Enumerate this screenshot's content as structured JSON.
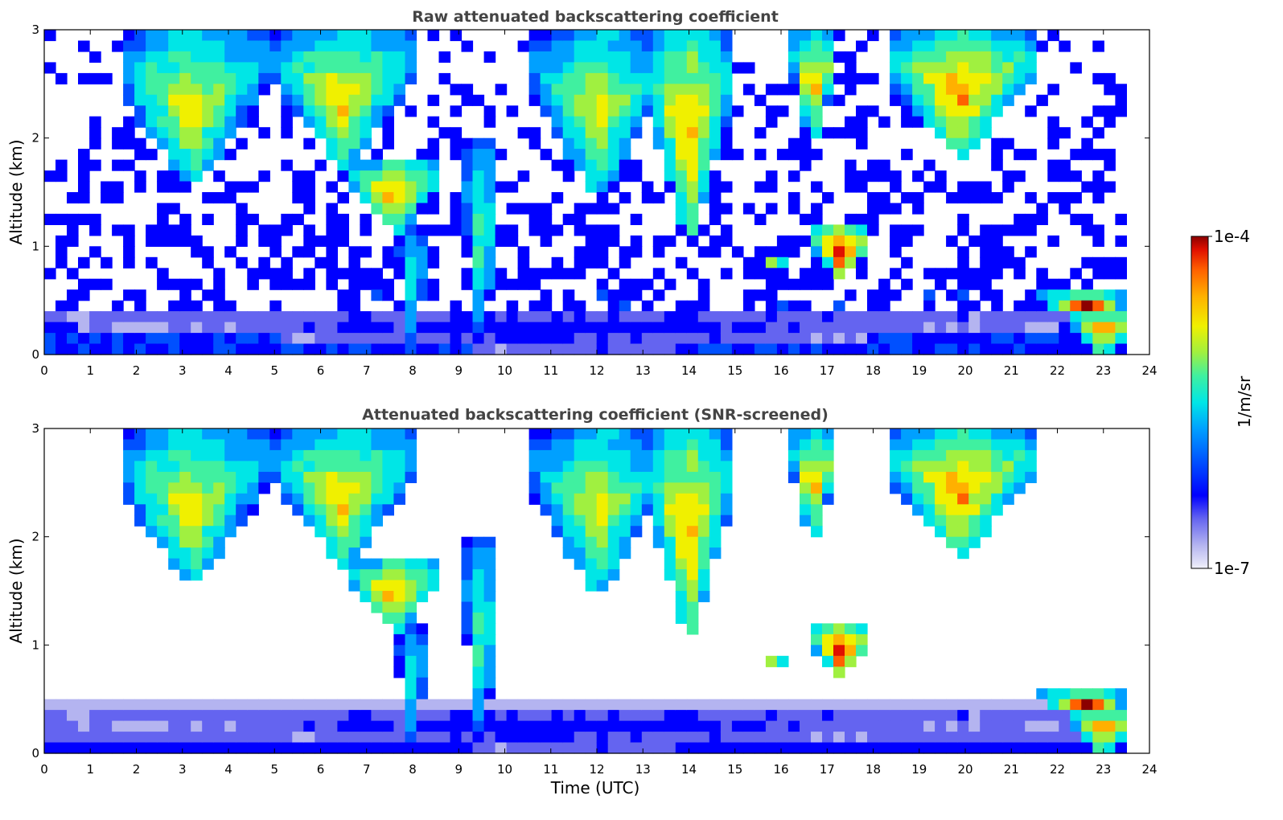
{
  "chart_data": [
    {
      "type": "heatmap",
      "title": "Raw attenuated backscattering coefficient",
      "xlabel": "",
      "ylabel": "Altitude (km)",
      "xlim": [
        0,
        24
      ],
      "ylim": [
        0,
        3
      ],
      "xticks": [
        "0",
        "1",
        "2",
        "3",
        "4",
        "5",
        "6",
        "7",
        "8",
        "9",
        "10",
        "11",
        "12",
        "13",
        "14",
        "15",
        "16",
        "17",
        "18",
        "19",
        "20",
        "21",
        "22",
        "23",
        "24"
      ],
      "yticks": [
        "0",
        "1",
        "2",
        "3"
      ],
      "screened": false,
      "features": [
        {
          "name": "cloud-band",
          "center_time": 3.2,
          "top_km": 3.0,
          "bottom_km": 1.5,
          "level": 0.72,
          "half_width_h": 1.6
        },
        {
          "name": "cloud-band",
          "center_time": 6.5,
          "top_km": 3.0,
          "bottom_km": 1.7,
          "level": 0.75,
          "half_width_h": 1.5
        },
        {
          "name": "descending-layer",
          "center_time": 7.6,
          "top_km": 1.8,
          "bottom_km": 1.1,
          "level": 0.8,
          "half_width_h": 1.0
        },
        {
          "name": "fall-streak",
          "center_time": 8.0,
          "top_km": 1.2,
          "bottom_km": 0.0,
          "level": 0.55,
          "half_width_h": 0.3
        },
        {
          "name": "fall-streak",
          "center_time": 9.5,
          "top_km": 2.0,
          "bottom_km": 0.0,
          "level": 0.6,
          "half_width_h": 0.4
        },
        {
          "name": "cloud-band",
          "center_time": 12.0,
          "top_km": 3.0,
          "bottom_km": 1.4,
          "level": 0.7,
          "half_width_h": 1.4
        },
        {
          "name": "cloud-band",
          "center_time": 14.0,
          "top_km": 3.0,
          "bottom_km": 1.0,
          "level": 0.8,
          "half_width_h": 0.9
        },
        {
          "name": "cloud-band",
          "center_time": 16.7,
          "top_km": 3.0,
          "bottom_km": 1.9,
          "level": 0.78,
          "half_width_h": 0.5
        },
        {
          "name": "cloud-band",
          "center_time": 19.9,
          "top_km": 3.0,
          "bottom_km": 1.8,
          "level": 0.82,
          "half_width_h": 1.6
        },
        {
          "name": "thin-layer",
          "center_time": 15.9,
          "top_km": 0.95,
          "bottom_km": 0.75,
          "level": 0.95,
          "half_width_h": 0.2
        },
        {
          "name": "thin-layer",
          "center_time": 17.3,
          "top_km": 1.2,
          "bottom_km": 0.65,
          "level": 0.95,
          "half_width_h": 0.6
        },
        {
          "name": "low-cloud",
          "center_time": 22.6,
          "top_km": 0.55,
          "bottom_km": 0.35,
          "level": 1.0,
          "half_width_h": 1.0
        },
        {
          "name": "boundary-layer",
          "center_time": 11.5,
          "top_km": 0.45,
          "bottom_km": 0.0,
          "level": 0.25,
          "half_width_h": 11.5
        },
        {
          "name": "dense-surface",
          "center_time": 23.0,
          "top_km": 0.4,
          "bottom_km": 0.0,
          "level": 0.85,
          "half_width_h": 0.7
        }
      ]
    },
    {
      "type": "heatmap",
      "title": "Attenuated backscattering coefficient (SNR-screened)",
      "xlabel": "Time (UTC)",
      "ylabel": "Altitude (km)",
      "xlim": [
        0,
        24
      ],
      "ylim": [
        0,
        3
      ],
      "xticks": [
        "0",
        "1",
        "2",
        "3",
        "4",
        "5",
        "6",
        "7",
        "8",
        "9",
        "10",
        "11",
        "12",
        "13",
        "14",
        "15",
        "16",
        "17",
        "18",
        "19",
        "20",
        "21",
        "22",
        "23",
        "24"
      ],
      "yticks": [
        "0",
        "1",
        "2",
        "3"
      ],
      "screened": true,
      "features": []
    }
  ],
  "colorbar": {
    "label": "1/m/sr",
    "max_label": "1e-4",
    "min_label": "1e-7",
    "scale": "log",
    "range": [
      1e-07,
      0.0001
    ],
    "colors": [
      "#f0f0fa",
      "#b4b4f0",
      "#6464f0",
      "#0000ff",
      "#0050ff",
      "#00a0ff",
      "#00e6e6",
      "#40f0a0",
      "#a0f040",
      "#f0f000",
      "#ffb000",
      "#ff6000",
      "#e01000",
      "#8b0000"
    ]
  },
  "data_end_time": 23.5
}
